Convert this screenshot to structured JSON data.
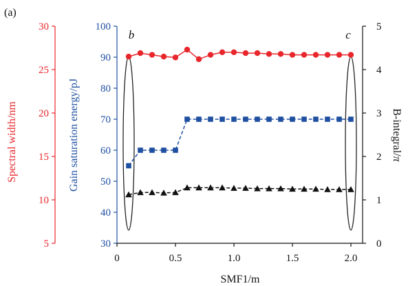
{
  "panel_label": "(a)",
  "chart_data": {
    "type": "line",
    "xlabel": "SMF1/m",
    "xlim": [
      0,
      2.1
    ],
    "xticks": [
      "0",
      "0.5",
      "1.0",
      "1.5",
      "2.0"
    ],
    "xtick_values": [
      0,
      0.5,
      1.0,
      1.5,
      2.0
    ],
    "axes": {
      "spectral": {
        "label": "Spectral width/nm",
        "ylim": [
          5,
          30
        ],
        "ticks": [
          5,
          10,
          15,
          20,
          25,
          30
        ],
        "color": "#e8262b",
        "side": "left-outer"
      },
      "energy": {
        "label": "Gain saturation energy/pJ",
        "ylim": [
          30,
          100
        ],
        "ticks": [
          30,
          40,
          50,
          60,
          70,
          80,
          90,
          100
        ],
        "color": "#1f4fa0",
        "side": "left-inner"
      },
      "bint": {
        "label": "B-integral/",
        "label_symbol": "π",
        "ylim": [
          0,
          5
        ],
        "ticks": [
          0,
          1,
          2,
          3,
          4,
          5
        ],
        "color": "#222222",
        "side": "right"
      }
    },
    "x": [
      0.1,
      0.2,
      0.3,
      0.4,
      0.5,
      0.6,
      0.7,
      0.8,
      0.9,
      1.0,
      1.1,
      1.2,
      1.3,
      1.4,
      1.5,
      1.6,
      1.7,
      1.8,
      1.9,
      2.0
    ],
    "series": [
      {
        "axis": "spectral",
        "marker": "circle",
        "dashed": false,
        "color": "#e8262b",
        "values": [
          26.5,
          26.9,
          26.7,
          26.5,
          26.4,
          27.3,
          26.2,
          26.7,
          27.0,
          27.0,
          26.9,
          26.9,
          26.8,
          26.8,
          26.7,
          26.7,
          26.7,
          26.7,
          26.7,
          26.7
        ]
      },
      {
        "axis": "energy",
        "marker": "square",
        "dashed": true,
        "color": "#1f4fa0",
        "values": [
          55,
          60,
          60,
          60,
          60,
          70,
          70,
          70,
          70,
          70,
          70,
          70,
          70,
          70,
          70,
          70,
          70,
          70,
          70,
          70
        ]
      },
      {
        "axis": "bint",
        "marker": "triangle",
        "dashed": true,
        "color": "#111111",
        "values": [
          1.12,
          1.17,
          1.17,
          1.16,
          1.17,
          1.28,
          1.28,
          1.28,
          1.28,
          1.27,
          1.27,
          1.26,
          1.26,
          1.26,
          1.25,
          1.25,
          1.25,
          1.24,
          1.24,
          1.24
        ]
      }
    ],
    "annotations": [
      {
        "text": "b",
        "x": 0.1
      },
      {
        "text": "c",
        "x": 2.0
      }
    ]
  }
}
